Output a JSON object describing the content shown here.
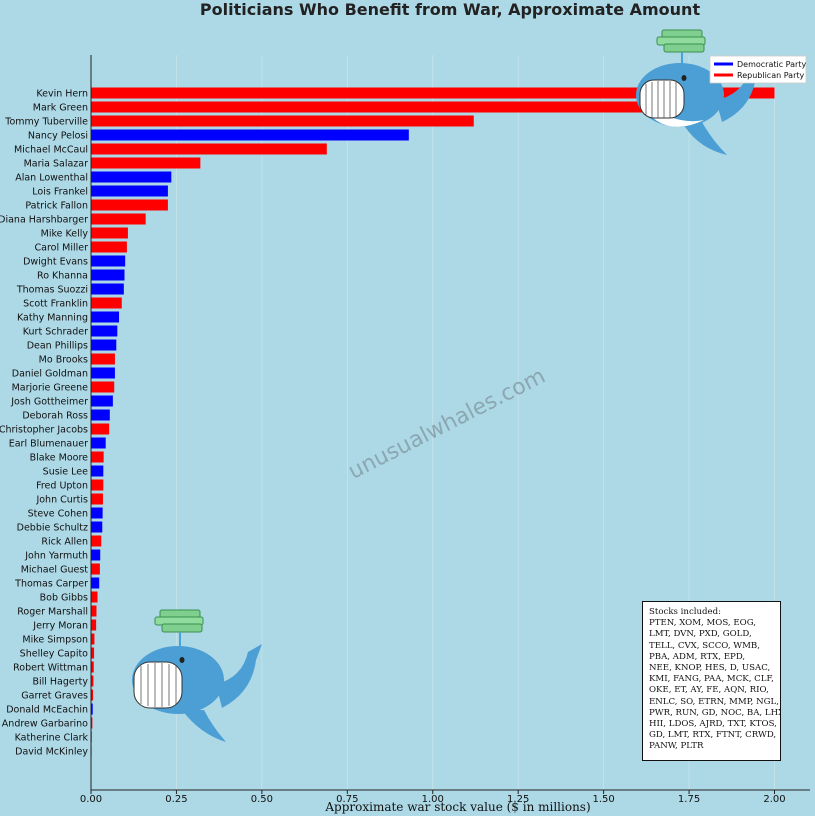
{
  "chart_data": {
    "type": "bar",
    "orientation": "horizontal",
    "title": "Politicians Who Benefit from War, Approximate Amount",
    "xlabel": "Approximate war stock value ($ in millions)",
    "xlim": [
      0,
      2.1
    ],
    "xticks": [
      "0.00",
      "0.25",
      "0.50",
      "0.75",
      "1.00",
      "1.25",
      "1.50",
      "1.75",
      "2.00"
    ],
    "grid": true,
    "legend": {
      "placement": "top-right",
      "entries": [
        {
          "label": "Democratic Party",
          "color": "#0000ff"
        },
        {
          "label": "Republican Party",
          "color": "#ff0000"
        }
      ]
    },
    "party_colors": {
      "D": "#0000ff",
      "R": "#ff0000"
    },
    "bars": [
      {
        "name": "Kevin Hern",
        "value": 2.0,
        "party": "R"
      },
      {
        "name": "Mark Green",
        "value": 1.82,
        "party": "R"
      },
      {
        "name": "Tommy Tuberville",
        "value": 1.12,
        "party": "R"
      },
      {
        "name": "Nancy Pelosi",
        "value": 0.93,
        "party": "D"
      },
      {
        "name": "Michael McCaul",
        "value": 0.69,
        "party": "R"
      },
      {
        "name": "Maria Salazar",
        "value": 0.32,
        "party": "R"
      },
      {
        "name": "Alan Lowenthal",
        "value": 0.235,
        "party": "D"
      },
      {
        "name": "Lois Frankel",
        "value": 0.225,
        "party": "D"
      },
      {
        "name": "Patrick Fallon",
        "value": 0.225,
        "party": "R"
      },
      {
        "name": "Diana Harshbarger",
        "value": 0.16,
        "party": "R"
      },
      {
        "name": "Mike Kelly",
        "value": 0.108,
        "party": "R"
      },
      {
        "name": "Carol Miller",
        "value": 0.105,
        "party": "R"
      },
      {
        "name": "Dwight Evans",
        "value": 0.1,
        "party": "D"
      },
      {
        "name": "Ro Khanna",
        "value": 0.098,
        "party": "D"
      },
      {
        "name": "Thomas Suozzi",
        "value": 0.096,
        "party": "D"
      },
      {
        "name": "Scott Franklin",
        "value": 0.09,
        "party": "R"
      },
      {
        "name": "Kathy Manning",
        "value": 0.082,
        "party": "D"
      },
      {
        "name": "Kurt Schrader",
        "value": 0.077,
        "party": "D"
      },
      {
        "name": "Dean Phillips",
        "value": 0.074,
        "party": "D"
      },
      {
        "name": "Mo Brooks",
        "value": 0.07,
        "party": "R"
      },
      {
        "name": "Daniel Goldman",
        "value": 0.07,
        "party": "D"
      },
      {
        "name": "Marjorie Greene",
        "value": 0.068,
        "party": "R"
      },
      {
        "name": "Josh Gottheimer",
        "value": 0.064,
        "party": "D"
      },
      {
        "name": "Deborah Ross",
        "value": 0.055,
        "party": "D"
      },
      {
        "name": "Christopher Jacobs",
        "value": 0.053,
        "party": "R"
      },
      {
        "name": "Earl Blumenauer",
        "value": 0.043,
        "party": "D"
      },
      {
        "name": "Blake Moore",
        "value": 0.037,
        "party": "R"
      },
      {
        "name": "Susie Lee",
        "value": 0.036,
        "party": "D"
      },
      {
        "name": "Fred Upton",
        "value": 0.036,
        "party": "R"
      },
      {
        "name": "John Curtis",
        "value": 0.035,
        "party": "R"
      },
      {
        "name": "Steve Cohen",
        "value": 0.034,
        "party": "D"
      },
      {
        "name": "Debbie Schultz",
        "value": 0.033,
        "party": "D"
      },
      {
        "name": "Rick Allen",
        "value": 0.03,
        "party": "R"
      },
      {
        "name": "John Yarmuth",
        "value": 0.027,
        "party": "D"
      },
      {
        "name": "Michael Guest",
        "value": 0.026,
        "party": "R"
      },
      {
        "name": "Thomas Carper",
        "value": 0.024,
        "party": "D"
      },
      {
        "name": "Bob Gibbs",
        "value": 0.019,
        "party": "R"
      },
      {
        "name": "Roger Marshall",
        "value": 0.016,
        "party": "R"
      },
      {
        "name": "Jerry Moran",
        "value": 0.015,
        "party": "R"
      },
      {
        "name": "Mike Simpson",
        "value": 0.01,
        "party": "R"
      },
      {
        "name": "Shelley Capito",
        "value": 0.009,
        "party": "R"
      },
      {
        "name": "Robert Wittman",
        "value": 0.008,
        "party": "R"
      },
      {
        "name": "Bill Hagerty",
        "value": 0.007,
        "party": "R"
      },
      {
        "name": "Garret Graves",
        "value": 0.006,
        "party": "R"
      },
      {
        "name": "Donald McEachin",
        "value": 0.005,
        "party": "D"
      },
      {
        "name": "Andrew Garbarino",
        "value": 0.004,
        "party": "R"
      },
      {
        "name": "Katherine Clark",
        "value": 0.002,
        "party": "D"
      },
      {
        "name": "David McKinley",
        "value": 0.001,
        "party": "R"
      }
    ]
  },
  "watermark": "unusualwhales.com",
  "stocks_box": {
    "lines": [
      "Stocks included:",
      "PTEN, XOM, MOS, EOG,",
      "LMT, DVN, PXD, GOLD,",
      "TELL, CVX, SCCO, WMB,",
      "PBA, ADM, RTX, EPD,",
      "NEE, KNOP, HES, D, USAC,",
      "KMI, FANG, PAA, MCK, CLF,",
      "OKE, ET, AY, FE, AQN, RIO,",
      "ENLC, SO, ETRN, MMP, NGL,",
      "PWR, RUN, GD, NOC, BA, LHX,",
      "HII, LDOS, AJRD, TXT, KTOS,",
      "GD, LMT, RTX, FTNT, CRWD,",
      "PANW, PLTR"
    ]
  },
  "icons": [
    "whale-icon",
    "money-stack-icon"
  ]
}
